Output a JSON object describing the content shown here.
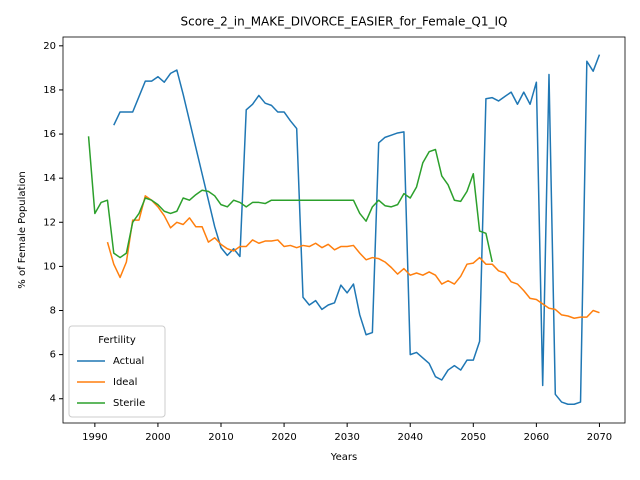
{
  "chart_data": {
    "type": "line",
    "title": "Score_2_in_MAKE_DIVORCE_EASIER_for_Female_Q1_IQ",
    "x_label": "Years",
    "y_label": "% of Female Population",
    "legend_title": "Fertility",
    "legend_position": "lower left",
    "x": [
      1989,
      1990,
      1991,
      1992,
      1993,
      1994,
      1995,
      1996,
      1997,
      1998,
      1999,
      2000,
      2001,
      2002,
      2003,
      2004,
      2005,
      2006,
      2007,
      2008,
      2009,
      2010,
      2011,
      2012,
      2013,
      2014,
      2015,
      2016,
      2017,
      2018,
      2019,
      2020,
      2021,
      2022,
      2023,
      2024,
      2025,
      2026,
      2027,
      2028,
      2029,
      2030,
      2031,
      2032,
      2033,
      2034,
      2035,
      2036,
      2037,
      2038,
      2039,
      2040,
      2041,
      2042,
      2043,
      2044,
      2045,
      2046,
      2047,
      2048,
      2049,
      2050,
      2051,
      2052,
      2053,
      2054,
      2055,
      2056,
      2057,
      2058,
      2059,
      2060,
      2061,
      2062,
      2063,
      2064,
      2065,
      2066,
      2067,
      2068,
      2069,
      2070
    ],
    "series": [
      {
        "name": "Actual",
        "color": "#1f77b4",
        "values": [
          null,
          null,
          null,
          null,
          16.4,
          17.0,
          17.0,
          17.0,
          17.7,
          18.4,
          18.4,
          18.6,
          18.35,
          18.75,
          18.9,
          17.8,
          16.6,
          15.4,
          14.2,
          13.0,
          11.8,
          10.85,
          10.5,
          10.8,
          10.45,
          17.1,
          17.35,
          17.75,
          17.4,
          17.3,
          17.0,
          17.0,
          16.6,
          16.25,
          8.6,
          8.25,
          8.45,
          8.05,
          8.25,
          8.35,
          9.15,
          8.8,
          9.2,
          7.8,
          6.9,
          7.0,
          15.6,
          15.85,
          15.95,
          16.05,
          16.1,
          6.0,
          6.1,
          5.85,
          5.6,
          5.0,
          4.85,
          5.3,
          5.5,
          5.3,
          5.75,
          5.75,
          6.6,
          17.6,
          17.65,
          17.5,
          17.7,
          17.9,
          17.35,
          17.9,
          17.35,
          18.35,
          4.6,
          18.7,
          4.2,
          3.85,
          3.75,
          3.75,
          3.85,
          19.3,
          18.85,
          19.6
        ]
      },
      {
        "name": "Ideal",
        "color": "#ff7f0e",
        "values": [
          null,
          null,
          null,
          11.1,
          10.1,
          9.5,
          10.2,
          12.1,
          12.1,
          13.2,
          13.0,
          12.7,
          12.3,
          11.75,
          12.0,
          11.9,
          12.2,
          11.8,
          11.8,
          11.1,
          11.3,
          11.0,
          10.8,
          10.7,
          10.9,
          10.9,
          11.2,
          11.05,
          11.15,
          11.15,
          11.2,
          10.9,
          10.95,
          10.85,
          10.95,
          10.9,
          11.05,
          10.85,
          11.0,
          10.75,
          10.9,
          10.9,
          10.95,
          10.6,
          10.3,
          10.4,
          10.35,
          10.2,
          9.95,
          9.65,
          9.9,
          9.6,
          9.7,
          9.6,
          9.75,
          9.6,
          9.2,
          9.35,
          9.2,
          9.55,
          10.1,
          10.15,
          10.4,
          10.1,
          10.1,
          9.8,
          9.7,
          9.3,
          9.2,
          8.9,
          8.55,
          8.5,
          8.3,
          8.1,
          8.05,
          7.8,
          7.75,
          7.65,
          7.7,
          7.7,
          8.0,
          7.9
        ]
      },
      {
        "name": "Sterile",
        "color": "#2ca02c",
        "values": [
          15.9,
          12.4,
          12.9,
          13.0,
          10.6,
          10.4,
          10.6,
          12.0,
          12.4,
          13.1,
          13.0,
          12.8,
          12.5,
          12.4,
          12.5,
          13.1,
          13.0,
          13.25,
          13.45,
          13.4,
          13.2,
          12.8,
          12.7,
          13.0,
          12.9,
          12.7,
          12.9,
          12.9,
          12.85,
          13.0,
          13.0,
          13.0,
          13.0,
          13.0,
          13.0,
          13.0,
          13.0,
          13.0,
          13.0,
          13.0,
          13.0,
          13.0,
          13.0,
          12.4,
          12.05,
          12.7,
          13.0,
          12.75,
          12.7,
          12.8,
          13.3,
          13.1,
          13.6,
          14.7,
          15.2,
          15.3,
          14.1,
          13.7,
          13.0,
          12.95,
          13.4,
          14.2,
          11.6,
          11.5,
          10.2,
          null,
          null,
          null,
          null,
          null,
          null,
          null,
          null,
          null,
          null,
          null,
          null,
          null,
          null,
          null,
          null,
          null
        ]
      }
    ],
    "xlim": [
      1984.95,
      2074.05
    ],
    "xticks": [
      1990,
      2000,
      2010,
      2020,
      2030,
      2040,
      2050,
      2060,
      2070
    ],
    "ylim": [
      2.9,
      20.4
    ],
    "yticks": [
      4,
      6,
      8,
      10,
      12,
      14,
      16,
      18,
      20
    ],
    "grid": false
  }
}
